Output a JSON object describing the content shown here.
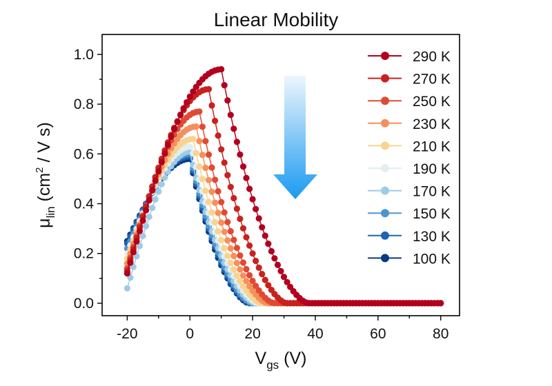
{
  "chart_data": {
    "type": "scatter",
    "title": "Linear Mobility",
    "xlabel_main": "V",
    "xlabel_sub": "gs",
    "xlabel_unit": " (V)",
    "ylabel_main": "μ",
    "ylabel_sub": "lin",
    "ylabel_unit_a": " (cm",
    "ylabel_sup": "2",
    "ylabel_unit_b": " / V s)",
    "xlim": [
      -28,
      86
    ],
    "ylim": [
      -0.05,
      1.08
    ],
    "xticks": [
      -20,
      0,
      20,
      40,
      60,
      80
    ],
    "xtick_labels": [
      "-20",
      "0",
      "20",
      "40",
      "60",
      "80"
    ],
    "yticks": [
      0.0,
      0.2,
      0.4,
      0.6,
      0.8,
      1.0
    ],
    "ytick_labels": [
      "0.0",
      "0.2",
      "0.4",
      "0.6",
      "0.8",
      "1.0"
    ],
    "legend_position": "top-right",
    "arrow_color_top": "#eef6fd",
    "arrow_color_bottom": "#1a9af0",
    "series": [
      {
        "name": "290 K",
        "color": "#b2001d",
        "peak_x": 10,
        "peak_y": 0.94,
        "start_y": 0.12,
        "end_x": 38
      },
      {
        "name": "270 K",
        "color": "#c8221e",
        "peak_x": 6,
        "peak_y": 0.86,
        "start_y": 0.13,
        "end_x": 31
      },
      {
        "name": "250 K",
        "color": "#e04a33",
        "peak_x": 3,
        "peak_y": 0.77,
        "start_y": 0.14,
        "end_x": 27
      },
      {
        "name": "230 K",
        "color": "#f58f5c",
        "peak_x": 2,
        "peak_y": 0.71,
        "start_y": 0.16,
        "end_x": 25
      },
      {
        "name": "210 K",
        "color": "#f9d38f",
        "peak_x": 1,
        "peak_y": 0.66,
        "start_y": 0.18,
        "end_x": 23
      },
      {
        "name": "190 K",
        "color": "#e3eef0",
        "peak_x": 0.5,
        "peak_y": 0.63,
        "start_y": 0.2,
        "end_x": 22
      },
      {
        "name": "170 K",
        "color": "#9fcbe6",
        "peak_x": 0,
        "peak_y": 0.61,
        "start_y": 0.06,
        "end_x": 21
      },
      {
        "name": "150 K",
        "color": "#4b95cf",
        "peak_x": 0,
        "peak_y": 0.6,
        "start_y": 0.22,
        "end_x": 20
      },
      {
        "name": "130 K",
        "color": "#1f63b3",
        "peak_x": 0,
        "peak_y": 0.59,
        "start_y": 0.24,
        "end_x": 19.5
      },
      {
        "name": "100 K",
        "color": "#0a3a85",
        "peak_x": 0,
        "peak_y": 0.58,
        "start_y": 0.25,
        "end_x": 19
      }
    ]
  }
}
